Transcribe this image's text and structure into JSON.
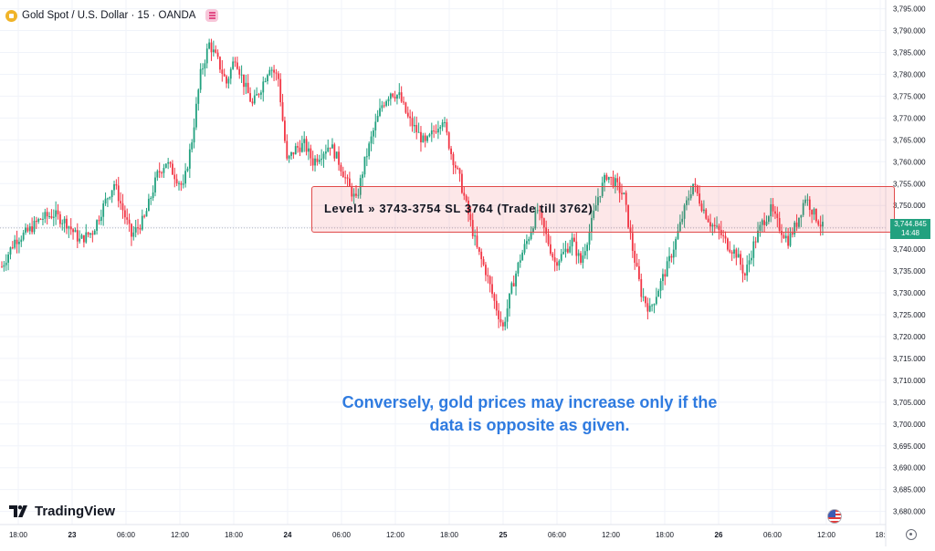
{
  "header": {
    "symbol": "Gold Spot / U.S. Dollar · 15 · OANDA"
  },
  "level": {
    "label": "Level1 » 3743-3754 SL 3764 (Trade till 3762)",
    "zone_low": 3743,
    "zone_high": 3754
  },
  "note": {
    "line1": "Conversely, gold prices may increase only if the",
    "line2": "data is opposite as given."
  },
  "branding": {
    "logo_text": "TradingView"
  },
  "price_tag": {
    "price": "3,744.845",
    "countdown": "14:48"
  },
  "colors": {
    "up": "#22a17f",
    "down": "#f23645",
    "note": "#2f7be0",
    "zone_border": "#e04a4a",
    "price_tag": "#22a17f"
  },
  "icons": {
    "coin": "gold-coin-icon",
    "menu": "pink-menu-icon",
    "flag": "us-flag-icon",
    "settings": "gear-icon"
  },
  "chart_data": {
    "type": "candlestick",
    "title": "Gold Spot / U.S. Dollar · 15 · OANDA",
    "ylim": [
      3677,
      3797
    ],
    "y_ticks": [
      "3,680.000",
      "3,685.000",
      "3,690.000",
      "3,695.000",
      "3,700.000",
      "3,705.000",
      "3,710.000",
      "3,715.000",
      "3,720.000",
      "3,725.000",
      "3,730.000",
      "3,735.000",
      "3,740.000",
      "3,745.000",
      "3,750.000",
      "3,755.000",
      "3,760.000",
      "3,765.000",
      "3,770.000",
      "3,775.000",
      "3,780.000",
      "3,785.000",
      "3,790.000",
      "3,795.000"
    ],
    "x_ticks": [
      "18:00",
      "23",
      "06:00",
      "12:00",
      "18:00",
      "24",
      "06:00",
      "12:00",
      "18:00",
      "25",
      "06:00",
      "12:00",
      "18:00",
      "26",
      "06:00",
      "12:00",
      "18:"
    ],
    "path_points": [
      [
        0,
        3736
      ],
      [
        6,
        3742
      ],
      [
        12,
        3744
      ],
      [
        18,
        3747
      ],
      [
        24,
        3748
      ],
      [
        30,
        3746
      ],
      [
        36,
        3742
      ],
      [
        42,
        3744
      ],
      [
        48,
        3751
      ],
      [
        52,
        3755
      ],
      [
        56,
        3749
      ],
      [
        60,
        3743
      ],
      [
        66,
        3747
      ],
      [
        72,
        3757
      ],
      [
        76,
        3760
      ],
      [
        80,
        3757
      ],
      [
        84,
        3754
      ],
      [
        88,
        3765
      ],
      [
        92,
        3780
      ],
      [
        96,
        3787
      ],
      [
        100,
        3783
      ],
      [
        104,
        3778
      ],
      [
        108,
        3784
      ],
      [
        112,
        3778
      ],
      [
        116,
        3773
      ],
      [
        120,
        3777
      ],
      [
        124,
        3782
      ],
      [
        128,
        3779
      ],
      [
        132,
        3760
      ],
      [
        136,
        3763
      ],
      [
        140,
        3764
      ],
      [
        144,
        3760
      ],
      [
        148,
        3762
      ],
      [
        152,
        3764
      ],
      [
        156,
        3760
      ],
      [
        160,
        3755
      ],
      [
        164,
        3751
      ],
      [
        168,
        3760
      ],
      [
        172,
        3767
      ],
      [
        176,
        3773
      ],
      [
        180,
        3776
      ],
      [
        184,
        3775
      ],
      [
        188,
        3770
      ],
      [
        192,
        3767
      ],
      [
        196,
        3764
      ],
      [
        200,
        3767
      ],
      [
        204,
        3770
      ],
      [
        208,
        3762
      ],
      [
        212,
        3756
      ],
      [
        216,
        3748
      ],
      [
        220,
        3740
      ],
      [
        224,
        3735
      ],
      [
        228,
        3728
      ],
      [
        232,
        3722
      ],
      [
        236,
        3731
      ],
      [
        240,
        3738
      ],
      [
        244,
        3743
      ],
      [
        248,
        3749
      ],
      [
        252,
        3743
      ],
      [
        256,
        3737
      ],
      [
        260,
        3739
      ],
      [
        264,
        3742
      ],
      [
        268,
        3737
      ],
      [
        272,
        3744
      ],
      [
        276,
        3752
      ],
      [
        280,
        3757
      ],
      [
        284,
        3755
      ],
      [
        288,
        3752
      ],
      [
        292,
        3740
      ],
      [
        296,
        3730
      ],
      [
        300,
        3726
      ],
      [
        304,
        3731
      ],
      [
        308,
        3736
      ],
      [
        312,
        3742
      ],
      [
        316,
        3749
      ],
      [
        320,
        3755
      ],
      [
        324,
        3750
      ],
      [
        328,
        3746
      ],
      [
        332,
        3744
      ],
      [
        336,
        3741
      ],
      [
        340,
        3739
      ],
      [
        344,
        3734
      ],
      [
        348,
        3741
      ],
      [
        352,
        3746
      ],
      [
        356,
        3749
      ],
      [
        360,
        3745
      ],
      [
        364,
        3742
      ],
      [
        368,
        3746
      ],
      [
        372,
        3752
      ],
      [
        376,
        3748
      ],
      [
        380,
        3745
      ]
    ]
  }
}
